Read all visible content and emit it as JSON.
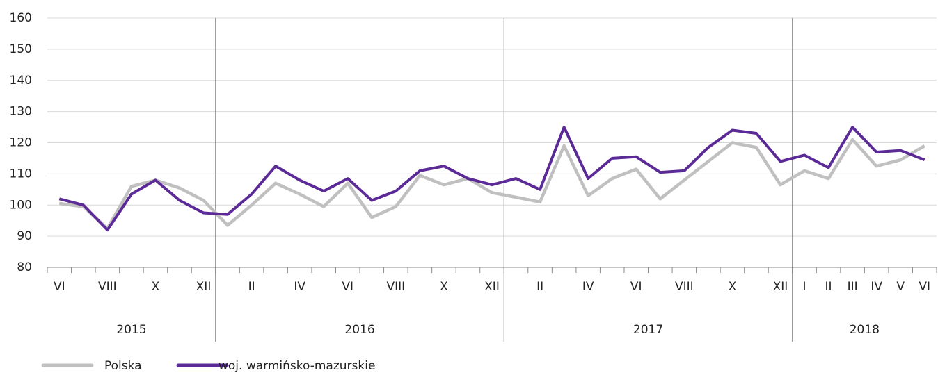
{
  "chart_data": {
    "type": "line",
    "categories": [
      "VI",
      null,
      "VIII",
      null,
      "X",
      null,
      "XII",
      null,
      "II",
      null,
      "IV",
      null,
      "VI",
      null,
      "VIII",
      null,
      "X",
      null,
      "XII",
      null,
      "II",
      null,
      "IV",
      null,
      "VI",
      null,
      "VIII",
      null,
      "X",
      null,
      "XII",
      "I",
      "II",
      "III",
      "IV",
      "V",
      "VI"
    ],
    "years": [
      {
        "label": "2015",
        "months": 7
      },
      {
        "label": "2016",
        "months": 12
      },
      {
        "label": "2017",
        "months": 12
      },
      {
        "label": "2018",
        "months": 6
      }
    ],
    "series": [
      {
        "name": "Polska",
        "color": "#c0c0c0",
        "values": [
          100.5,
          99.5,
          92.5,
          106,
          108,
          105.5,
          101.5,
          93.5,
          100,
          107,
          103.5,
          99.5,
          107,
          96,
          99.5,
          109.5,
          106.5,
          108.5,
          104,
          102.5,
          101,
          119,
          103,
          108.5,
          111.5,
          102,
          108,
          114,
          120,
          118.5,
          106.5,
          111,
          108.5,
          121,
          112.5,
          114.5,
          119
        ]
      },
      {
        "name": "woj. warmińsko-mazurskie",
        "color": "#5b2a96",
        "values": [
          102,
          100,
          92,
          103.5,
          108,
          101.5,
          97.5,
          97,
          103.5,
          112.5,
          108,
          104.5,
          108.5,
          101.5,
          104.5,
          111,
          112.5,
          108.5,
          106.5,
          108.5,
          105,
          125,
          108.5,
          115,
          115.5,
          110.5,
          111,
          118.5,
          124,
          123,
          114,
          116,
          112,
          125,
          117,
          117.5,
          114.5
        ]
      }
    ],
    "ylim": [
      80,
      160
    ],
    "yticks": [
      80,
      90,
      100,
      110,
      120,
      130,
      140,
      150,
      160
    ],
    "grid": true
  }
}
